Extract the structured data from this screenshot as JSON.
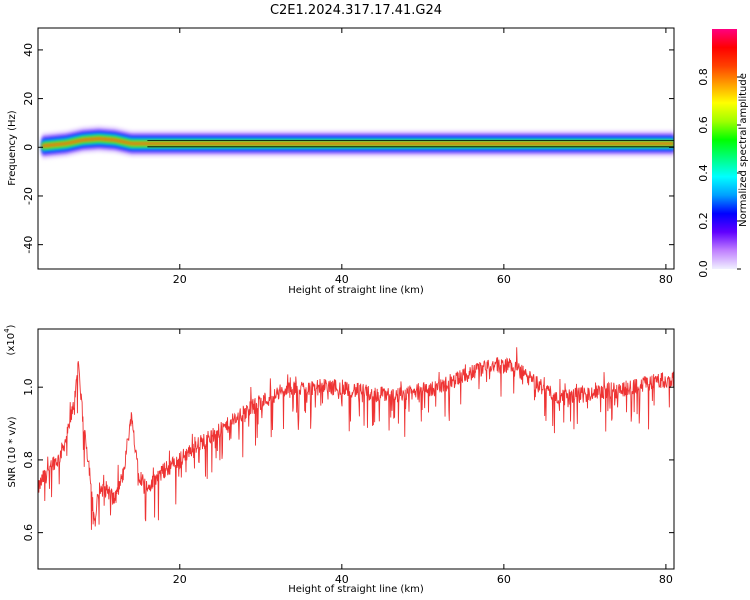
{
  "chart_data": [
    {
      "type": "heatmap",
      "title": "C2E1.2024.317.17.41.G24",
      "xlabel": "Height of straight line (km)",
      "ylabel": "Frequency (Hz)",
      "xlim": [
        2.5,
        81
      ],
      "ylim": [
        -50,
        49
      ],
      "x_ticks": [
        20,
        40,
        60,
        80
      ],
      "y_ticks": [
        -40,
        -20,
        0,
        20,
        40
      ],
      "colorbar": {
        "label": "Normalized spectral amplitude",
        "range": [
          0,
          1
        ],
        "ticks": [
          "0.0",
          "0.2",
          "0.4",
          "0.6",
          "0.8"
        ],
        "colors": [
          "#f0f0ff",
          "#c080ff",
          "#6000ff",
          "#0000ff",
          "#00a0ff",
          "#00ffff",
          "#00ff80",
          "#00ff00",
          "#a0ff00",
          "#ffff00",
          "#ffa000",
          "#ff4000",
          "#ff0000",
          "#ff0080"
        ]
      },
      "ridge": [
        {
          "x": 3,
          "f": 0.5
        },
        {
          "x": 6,
          "f": 1.5
        },
        {
          "x": 8,
          "f": 3
        },
        {
          "x": 10,
          "f": 3.5
        },
        {
          "x": 12,
          "f": 3
        },
        {
          "x": 14,
          "f": 1.5
        },
        {
          "x": 16,
          "f": 1.5
        },
        {
          "x": 20,
          "f": 1.5
        },
        {
          "x": 30,
          "f": 1.5
        },
        {
          "x": 40,
          "f": 1.5
        },
        {
          "x": 50,
          "f": 1.5
        },
        {
          "x": 60,
          "f": 1.5
        },
        {
          "x": 70,
          "f": 1.5
        },
        {
          "x": 81,
          "f": 1.5
        }
      ]
    },
    {
      "type": "line",
      "xlabel": "Height of straight line (km)",
      "ylabel": "SNR (10 * v/v)",
      "y_scale_label": "(x10",
      "y_scale_exp": "4",
      "xlim": [
        2.5,
        81
      ],
      "ylim": [
        0.5,
        1.16
      ],
      "x_ticks": [
        20,
        40,
        60,
        80
      ],
      "y_ticks": [
        "0.6",
        "0.8",
        "1.0"
      ],
      "color": "#ee3333",
      "trend": [
        {
          "x": 2.5,
          "y": 0.72
        },
        {
          "x": 4,
          "y": 0.79
        },
        {
          "x": 5,
          "y": 0.8
        },
        {
          "x": 6,
          "y": 0.86
        },
        {
          "x": 7,
          "y": 0.96
        },
        {
          "x": 7.5,
          "y": 1.07
        },
        {
          "x": 8,
          "y": 0.92
        },
        {
          "x": 9,
          "y": 0.75
        },
        {
          "x": 9.5,
          "y": 0.62
        },
        {
          "x": 10,
          "y": 0.72
        },
        {
          "x": 11,
          "y": 0.72
        },
        {
          "x": 12,
          "y": 0.69
        },
        {
          "x": 13,
          "y": 0.76
        },
        {
          "x": 14,
          "y": 0.92
        },
        {
          "x": 15,
          "y": 0.76
        },
        {
          "x": 16,
          "y": 0.72
        },
        {
          "x": 18,
          "y": 0.77
        },
        {
          "x": 20,
          "y": 0.8
        },
        {
          "x": 22,
          "y": 0.84
        },
        {
          "x": 25,
          "y": 0.88
        },
        {
          "x": 28,
          "y": 0.93
        },
        {
          "x": 30,
          "y": 0.96
        },
        {
          "x": 33,
          "y": 0.99
        },
        {
          "x": 36,
          "y": 1.0
        },
        {
          "x": 40,
          "y": 1.0
        },
        {
          "x": 44,
          "y": 0.98
        },
        {
          "x": 48,
          "y": 0.98
        },
        {
          "x": 52,
          "y": 1.0
        },
        {
          "x": 55,
          "y": 1.03
        },
        {
          "x": 58,
          "y": 1.06
        },
        {
          "x": 61,
          "y": 1.06
        },
        {
          "x": 64,
          "y": 1.01
        },
        {
          "x": 67,
          "y": 0.97
        },
        {
          "x": 70,
          "y": 0.98
        },
        {
          "x": 73,
          "y": 0.99
        },
        {
          "x": 76,
          "y": 1.0
        },
        {
          "x": 79,
          "y": 1.02
        },
        {
          "x": 81,
          "y": 1.02
        }
      ]
    }
  ]
}
